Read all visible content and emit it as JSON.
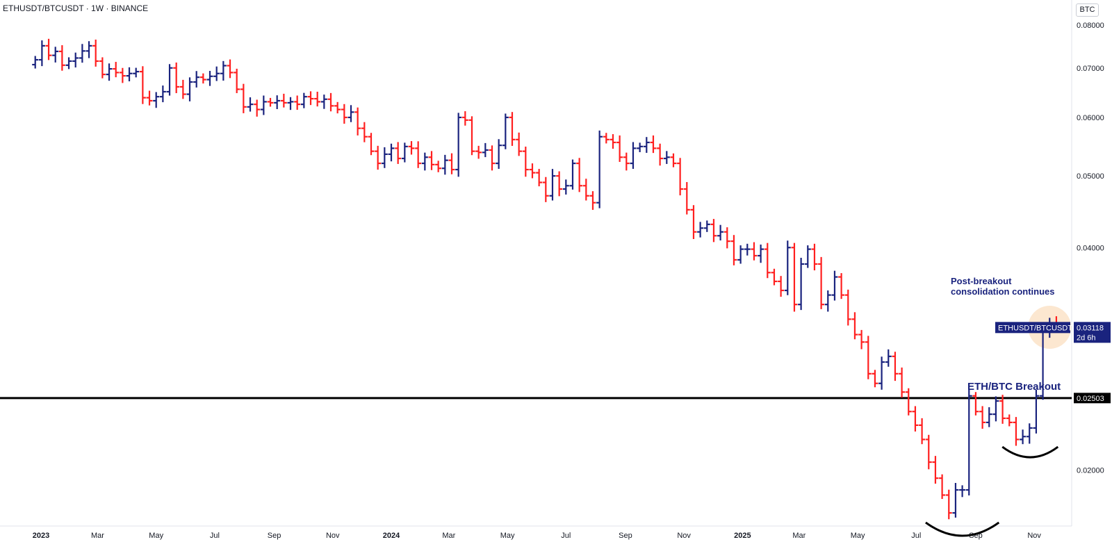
{
  "header": {
    "title": "ETHUSDT/BTCUSDT · 1W · BINANCE",
    "currency_button": "BTC"
  },
  "colors": {
    "up": "#1a237e",
    "down": "#ff1f1f",
    "level_line": "#000000",
    "highlight_circle": "#fbe3c8"
  },
  "chart_data": {
    "type": "ohlc",
    "scale": "log",
    "symbol": "ETHUSDT/BTCUSDT",
    "timeframe": "1W",
    "exchange": "BINANCE",
    "ylim": [
      0.0168,
      0.0865
    ],
    "y_ticks": [
      "0.08000",
      "0.07000",
      "0.06000",
      "0.05000",
      "0.04000",
      "0.02000"
    ],
    "x_ticks": [
      {
        "date": "2023-01-01",
        "label": "2023",
        "bold": true
      },
      {
        "date": "2023-03-01",
        "label": "Mar"
      },
      {
        "date": "2023-05-01",
        "label": "May"
      },
      {
        "date": "2023-07-01",
        "label": "Jul"
      },
      {
        "date": "2023-09-01",
        "label": "Sep"
      },
      {
        "date": "2023-11-01",
        "label": "Nov"
      },
      {
        "date": "2024-01-01",
        "label": "2024",
        "bold": true
      },
      {
        "date": "2024-03-01",
        "label": "Mar"
      },
      {
        "date": "2024-05-01",
        "label": "May"
      },
      {
        "date": "2024-07-01",
        "label": "Jul"
      },
      {
        "date": "2024-09-01",
        "label": "Sep"
      },
      {
        "date": "2024-11-01",
        "label": "Nov"
      },
      {
        "date": "2025-01-01",
        "label": "2025",
        "bold": true
      },
      {
        "date": "2025-03-01",
        "label": "Mar"
      },
      {
        "date": "2025-05-01",
        "label": "May"
      },
      {
        "date": "2025-07-01",
        "label": "Jul"
      },
      {
        "date": "2025-09-01",
        "label": "Sep"
      },
      {
        "date": "2025-11-01",
        "label": "Nov"
      }
    ],
    "weekly_close": [
      0.0718,
      0.075,
      0.0728,
      0.0737,
      0.0706,
      0.0715,
      0.0722,
      0.0738,
      0.075,
      0.0715,
      0.0686,
      0.0698,
      0.069,
      0.0683,
      0.0688,
      0.0692,
      0.0638,
      0.0632,
      0.064,
      0.065,
      0.07,
      0.066,
      0.0645,
      0.067,
      0.068,
      0.0675,
      0.0682,
      0.0688,
      0.0705,
      0.069,
      0.0655,
      0.062,
      0.0625,
      0.0615,
      0.063,
      0.0628,
      0.0632,
      0.0628,
      0.063,
      0.0625,
      0.064,
      0.0636,
      0.063,
      0.0635,
      0.0622,
      0.0615,
      0.06,
      0.061,
      0.058,
      0.0565,
      0.054,
      0.052,
      0.0535,
      0.0545,
      0.0528,
      0.0548,
      0.0545,
      0.052,
      0.053,
      0.0518,
      0.0512,
      0.0525,
      0.051,
      0.06,
      0.0595,
      0.054,
      0.0538,
      0.0542,
      0.052,
      0.055,
      0.06,
      0.056,
      0.054,
      0.051,
      0.0505,
      0.049,
      0.047,
      0.05,
      0.048,
      0.0485,
      0.052,
      0.0485,
      0.047,
      0.046,
      0.0565,
      0.056,
      0.0555,
      0.053,
      0.052,
      0.0545,
      0.0548,
      0.0555,
      0.0545,
      0.0528,
      0.053,
      0.052,
      0.048,
      0.045,
      0.042,
      0.0425,
      0.043,
      0.0415,
      0.042,
      0.0408,
      0.0385,
      0.0398,
      0.0398,
      0.039,
      0.0398,
      0.037,
      0.036,
      0.035,
      0.04,
      0.0335,
      0.038,
      0.0398,
      0.038,
      0.0335,
      0.0345,
      0.0365,
      0.0345,
      0.032,
      0.0305,
      0.0298,
      0.027,
      0.0262,
      0.028,
      0.0285,
      0.027,
      0.0255,
      0.024,
      0.023,
      0.022,
      0.0205,
      0.0195,
      0.0185,
      0.0175,
      0.0188,
      0.0188,
      0.0252,
      0.024,
      0.0232,
      0.0238,
      0.0248,
      0.0235,
      0.0232,
      0.022,
      0.0222,
      0.0228,
      0.0252,
      0.0308,
      0.0316,
      0.0312
    ],
    "annotations": [
      {
        "text": "ETH/BTC Breakout",
        "type": "horizontal_line",
        "price": 0.02503
      },
      {
        "text": "Post-breakout consolidation continues",
        "lines": [
          "Post-breakout",
          "consolidation continues"
        ]
      }
    ],
    "price_labels": {
      "level": "0.02503",
      "last_price": "0.03118",
      "symbol_tag": "ETHUSDT/BTCUSDT",
      "countdown": "2d 6h"
    }
  }
}
